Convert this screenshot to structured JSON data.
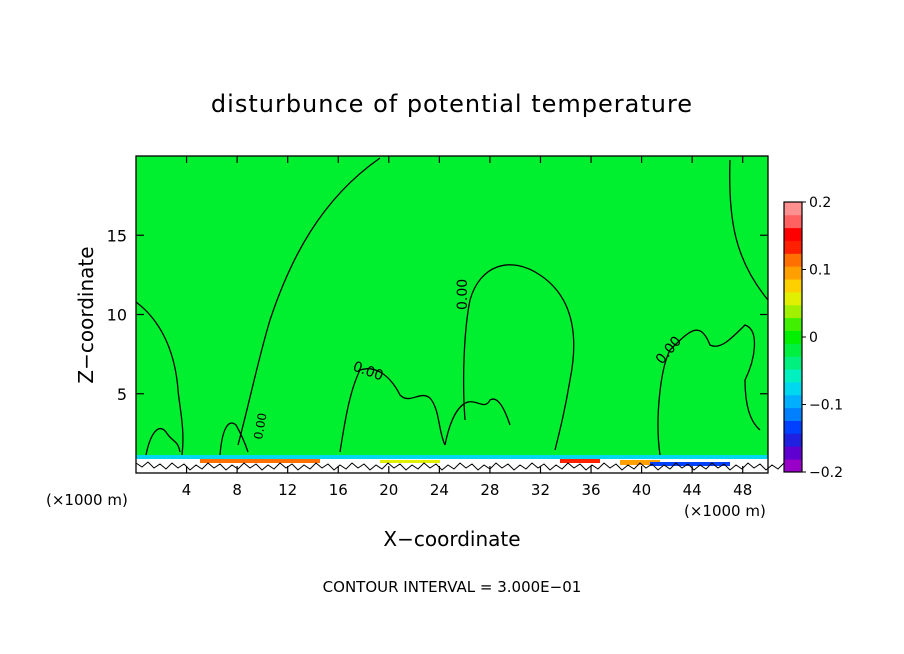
{
  "chart_data": {
    "type": "heatmap",
    "title": "disturbunce of potential temperature",
    "xlabel": "X−coordinate",
    "ylabel": "Z−coordinate",
    "x_unit_left": "(×1000 m)",
    "x_unit_right": "(×1000 m)",
    "footer": "CONTOUR INTERVAL = 3.000E−01",
    "xlim": [
      0,
      50
    ],
    "ylim": [
      0,
      20
    ],
    "x_ticks": [
      4,
      8,
      12,
      16,
      20,
      24,
      28,
      32,
      36,
      40,
      44,
      48
    ],
    "y_ticks": [
      5,
      10,
      15
    ],
    "colorbar": {
      "range": [
        -0.2,
        0.2
      ],
      "tick_values": [
        0.2,
        0.1,
        0,
        -0.1,
        -0.2
      ],
      "tick_labels": [
        "0.2",
        "0.1",
        "0",
        "−0.1",
        "−0.2"
      ],
      "colors": [
        "#9900c8",
        "#6000d0",
        "#2020e0",
        "#0040ff",
        "#0080ff",
        "#00b0ff",
        "#00d8f0",
        "#00f0c0",
        "#00f080",
        "#00f040",
        "#00f000",
        "#40f000",
        "#a0f000",
        "#e0f000",
        "#ffd000",
        "#ffa000",
        "#ff7000",
        "#ff2000",
        "#ff0000",
        "#ff6060",
        "#ff9090"
      ]
    },
    "contour_labels": [
      "0.00",
      "0.00",
      "0.00",
      "0.00"
    ],
    "field_note_color": "#00f030"
  }
}
